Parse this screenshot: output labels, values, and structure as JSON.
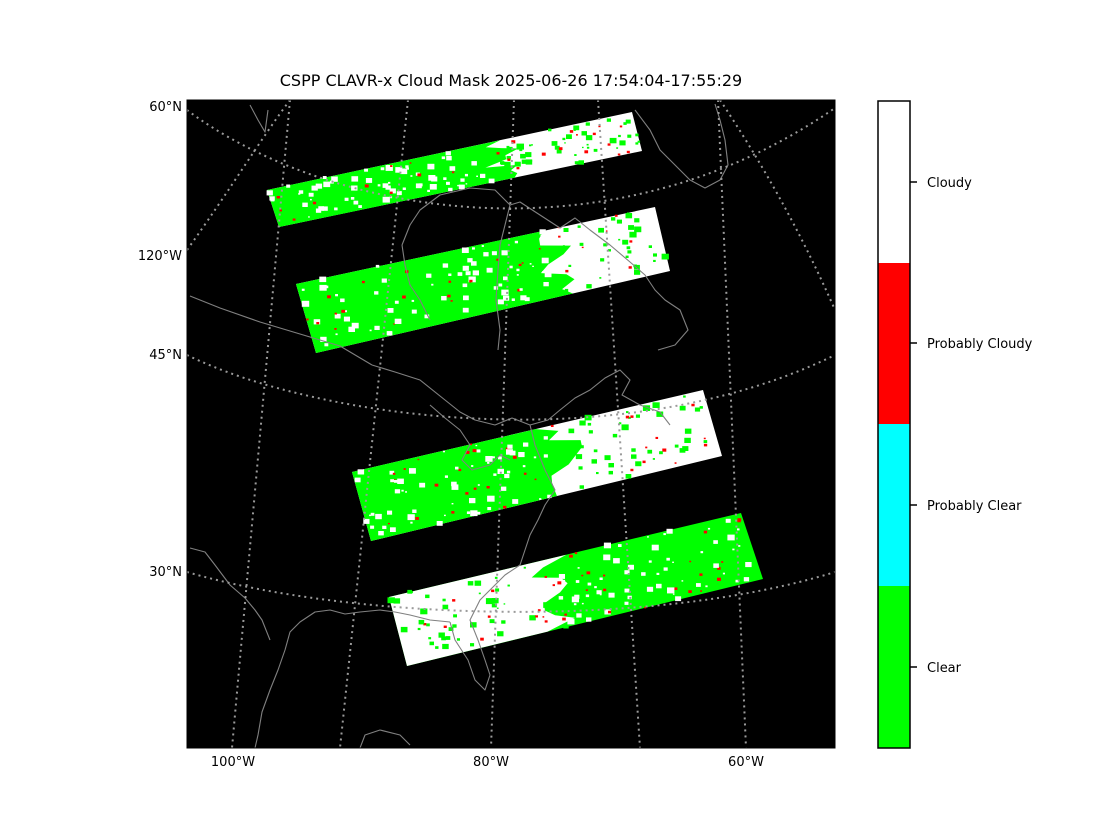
{
  "title": "CSPP CLAVR-x Cloud Mask 2025-06-26 17:54:04-17:55:29",
  "map": {
    "background": "#000000",
    "coastline_color": "#808080",
    "graticule_color": "#9a9a9a",
    "lat_labels": [
      "60°N",
      "120°W",
      "45°N",
      "30°N"
    ],
    "lon_labels": [
      "100°W",
      "80°W",
      "60°W"
    ]
  },
  "mask_classes": [
    {
      "label": "Clear",
      "color": "#00ff00"
    },
    {
      "label": "Probably Clear",
      "color": "#00ffff"
    },
    {
      "label": "Probably Cloudy",
      "color": "#ff0000"
    },
    {
      "label": "Cloudy",
      "color": "#ffffff"
    }
  ],
  "swaths": [
    {
      "name": "swath-1",
      "composition": "green-west-white-east-with-cloudy-southwest"
    },
    {
      "name": "swath-2",
      "composition": "mostly-green-west-white-east"
    },
    {
      "name": "swath-3",
      "composition": "green-west-white-east"
    },
    {
      "name": "swath-4",
      "composition": "white-west-green-east"
    }
  ]
}
